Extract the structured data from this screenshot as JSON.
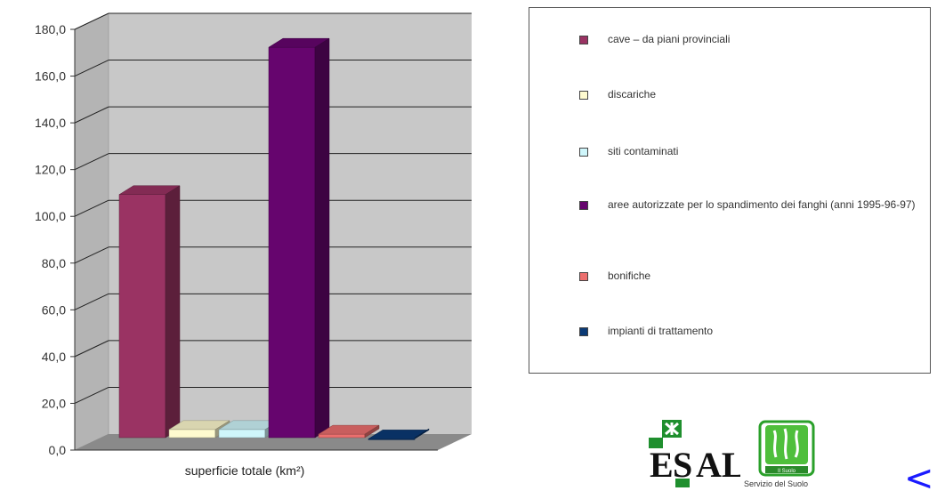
{
  "chart_data": {
    "type": "bar",
    "title": "",
    "xlabel": "superficie totale (km²)",
    "ylabel": "",
    "ylim": [
      0,
      180
    ],
    "yticks": [
      "0,0",
      "20,0",
      "40,0",
      "60,0",
      "80,0",
      "100,0",
      "120,0",
      "140,0",
      "160,0",
      "180,0"
    ],
    "grid": true,
    "legend_position": "right",
    "categories": [
      "superficie totale (km²)"
    ],
    "series": [
      {
        "name": "cave – da piani provinciali",
        "values": [
          104
        ],
        "color": "#9a3363"
      },
      {
        "name": "discariche",
        "values": [
          5
        ],
        "color": "#fffbcf"
      },
      {
        "name": "siti contaminati",
        "values": [
          5
        ],
        "color": "#cff6fb"
      },
      {
        "name": "aree autorizzate per lo spandimento dei fanghi (anni 1995-96-97)",
        "values": [
          167
        ],
        "color": "#66056e"
      },
      {
        "name": "bonifiche",
        "values": [
          3
        ],
        "color": "#ec6f6e"
      },
      {
        "name": "impianti di trattamento",
        "values": [
          1
        ],
        "color": "#0b3a76"
      }
    ]
  },
  "legend": {
    "items": [
      "cave – da piani provinciali",
      "discariche",
      "siti contaminati",
      "aree autorizzate per lo spandimento dei fanghi (anni 1995-96-97)",
      "bonifiche",
      "impianti di trattamento"
    ]
  },
  "logos": {
    "ersal_text": "ERSAL",
    "suolo_caption": "Servizio del Suolo",
    "suolo_badge": "Il Suolo"
  },
  "nav": {
    "prev_label": "<"
  }
}
